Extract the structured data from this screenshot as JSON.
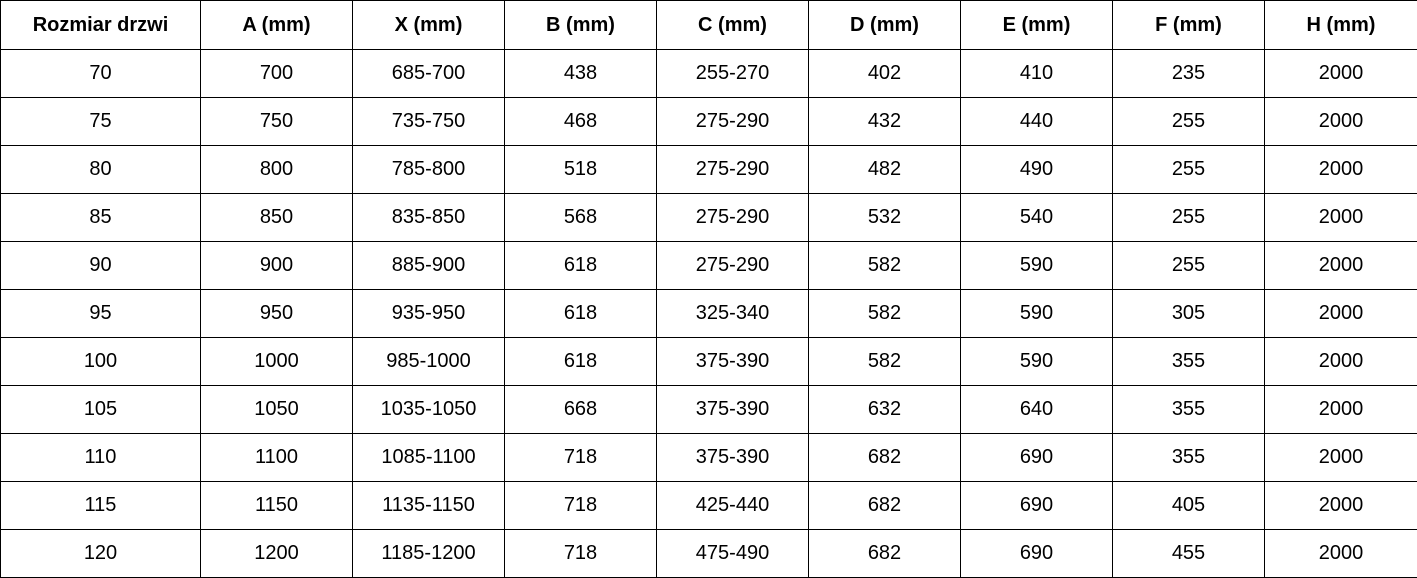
{
  "table": {
    "headers": [
      "Rozmiar drzwi",
      "A (mm)",
      "X (mm)",
      "B (mm)",
      "C (mm)",
      "D (mm)",
      "E (mm)",
      "F (mm)",
      "H (mm)"
    ],
    "rows": [
      [
        "70",
        "700",
        "685-700",
        "438",
        "255-270",
        "402",
        "410",
        "235",
        "2000"
      ],
      [
        "75",
        "750",
        "735-750",
        "468",
        "275-290",
        "432",
        "440",
        "255",
        "2000"
      ],
      [
        "80",
        "800",
        "785-800",
        "518",
        "275-290",
        "482",
        "490",
        "255",
        "2000"
      ],
      [
        "85",
        "850",
        "835-850",
        "568",
        "275-290",
        "532",
        "540",
        "255",
        "2000"
      ],
      [
        "90",
        "900",
        "885-900",
        "618",
        "275-290",
        "582",
        "590",
        "255",
        "2000"
      ],
      [
        "95",
        "950",
        "935-950",
        "618",
        "325-340",
        "582",
        "590",
        "305",
        "2000"
      ],
      [
        "100",
        "1000",
        "985-1000",
        "618",
        "375-390",
        "582",
        "590",
        "355",
        "2000"
      ],
      [
        "105",
        "1050",
        "1035-1050",
        "668",
        "375-390",
        "632",
        "640",
        "355",
        "2000"
      ],
      [
        "110",
        "1100",
        "1085-1100",
        "718",
        "375-390",
        "682",
        "690",
        "355",
        "2000"
      ],
      [
        "115",
        "1150",
        "1135-1150",
        "718",
        "425-440",
        "682",
        "690",
        "405",
        "2000"
      ],
      [
        "120",
        "1200",
        "1185-1200",
        "718",
        "475-490",
        "682",
        "690",
        "455",
        "2000"
      ]
    ]
  }
}
